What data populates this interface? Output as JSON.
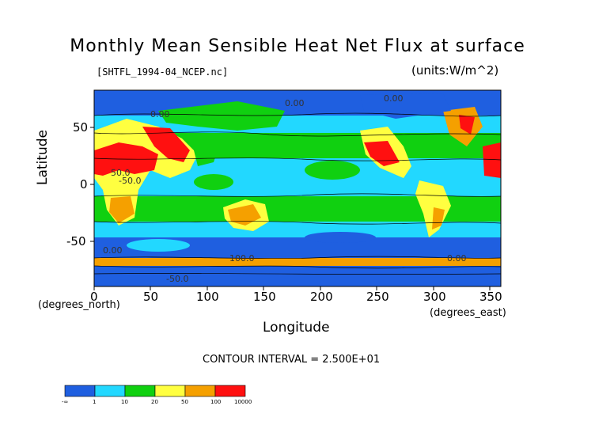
{
  "title": "Monthly Mean Sensible Heat Net Flux at surface",
  "file_label": "[SHTFL_1994-04_NCEP.nc]",
  "units_label": "(units:W/m^2)",
  "ylabel": "Latitude",
  "xlabel": "Longitude",
  "y_unit_label": "(degrees_north)",
  "x_unit_label": "(degrees_east)",
  "contour_interval": "CONTOUR INTERVAL = 2.500E+01",
  "map": {
    "x_ticks": [
      "0",
      "50",
      "100",
      "150",
      "200",
      "250",
      "300",
      "350"
    ],
    "y_ticks": [
      "50",
      "0",
      "-50"
    ],
    "contour_labels": [
      "0.00",
      "50.0",
      "-50.0",
      "100.0",
      "0.00",
      "0.00",
      "0.00",
      "-50.0",
      "0.00"
    ]
  },
  "colorbar": {
    "colors": [
      "#1f5fe0",
      "#22d8ff",
      "#10d010",
      "#ffff40",
      "#f5a000",
      "#ff1010"
    ],
    "labels": [
      "-∞",
      "1",
      "10",
      "20",
      "50",
      "100",
      "10000"
    ]
  }
}
